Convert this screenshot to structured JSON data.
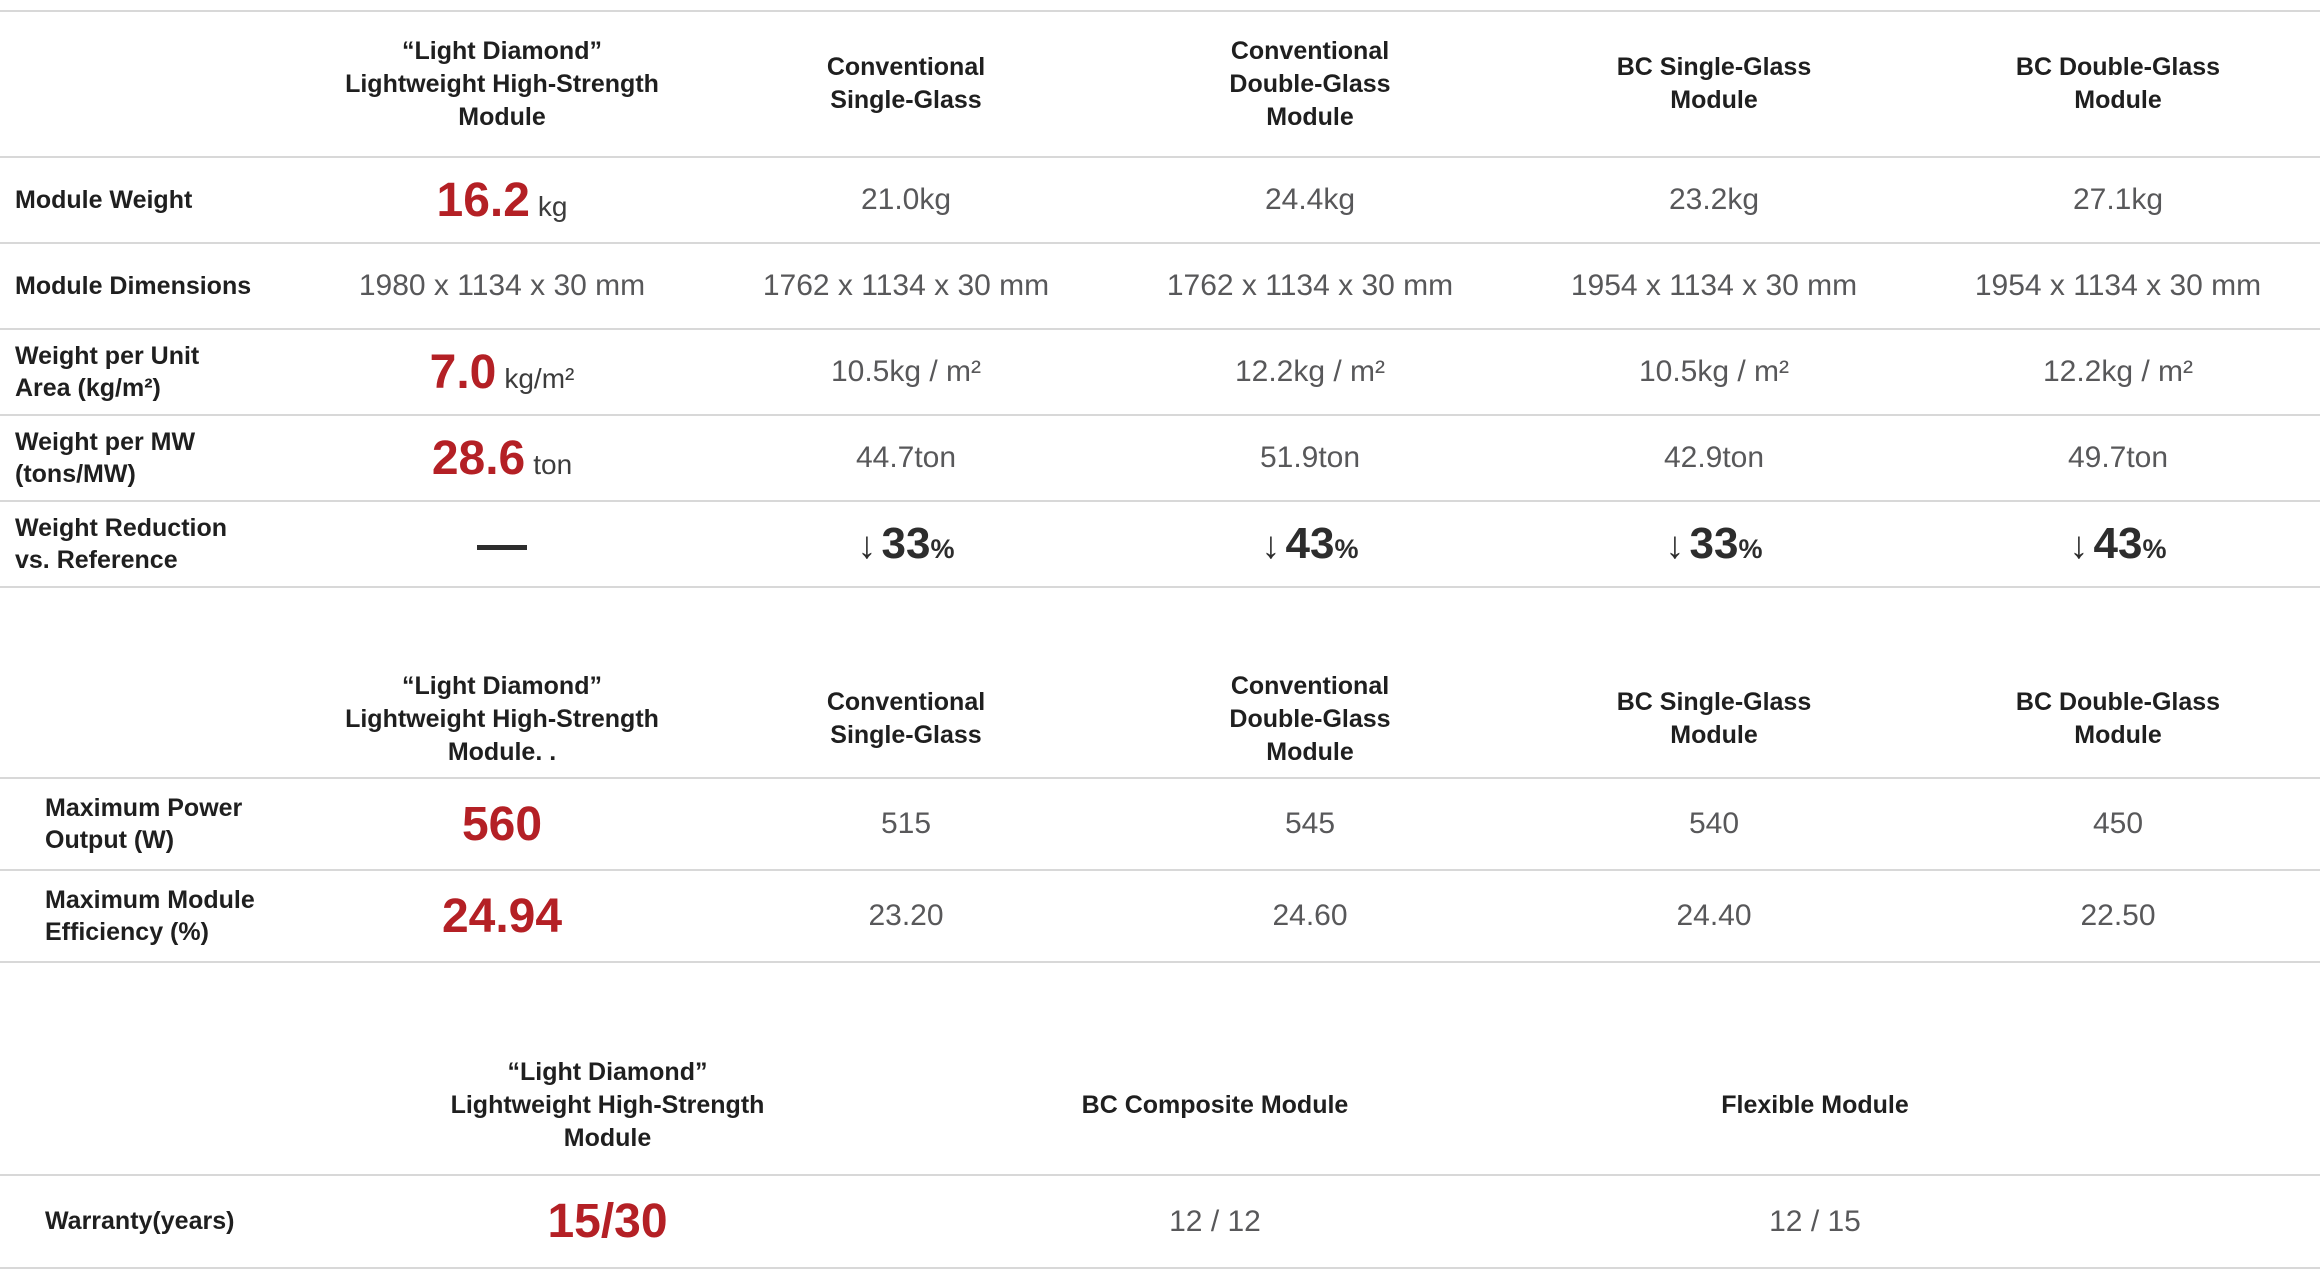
{
  "colors": {
    "accent": "#b42025",
    "label_text": "#1f1f1f",
    "value_text": "#58585a",
    "highlight_dark": "#2d2d2d",
    "divider": "#d8d8d8",
    "background": "#ffffff"
  },
  "chart_data": [
    {
      "type": "table",
      "title": "Module weight comparison",
      "columns": [
        {
          "lines": [
            "“Light Diamond”",
            "Lightweight High-Strength",
            "Module"
          ]
        },
        {
          "lines": [
            "Conventional",
            "Single-Glass"
          ]
        },
        {
          "lines": [
            "Conventional",
            "Double-Glass",
            "Module"
          ]
        },
        {
          "lines": [
            "BC Single-Glass",
            "Module"
          ]
        },
        {
          "lines": [
            "BC Double-Glass",
            "Module"
          ]
        }
      ],
      "rows": [
        {
          "label_lines": [
            "Module Weight"
          ],
          "cells": [
            {
              "num": "16.2",
              "unit": "kg"
            },
            {
              "text": "21.0kg"
            },
            {
              "text": "24.4kg"
            },
            {
              "text": "23.2kg"
            },
            {
              "text": "27.1kg"
            }
          ]
        },
        {
          "label_lines": [
            "Module Dimensions"
          ],
          "cells": [
            {
              "text": "1980 x 1134 x 30 mm"
            },
            {
              "text": "1762 x 1134 x 30 mm"
            },
            {
              "text": "1762 x 1134 x 30 mm"
            },
            {
              "text": "1954 x 1134 x 30 mm"
            },
            {
              "text": "1954 x 1134 x 30 mm"
            }
          ]
        },
        {
          "label_lines": [
            "Weight per Unit",
            "Area (kg/m²)"
          ],
          "cells": [
            {
              "num": "7.0",
              "unit": "kg/m²"
            },
            {
              "text": "10.5kg / m²"
            },
            {
              "text": "12.2kg / m²"
            },
            {
              "text": "10.5kg / m²"
            },
            {
              "text": "12.2kg / m²"
            }
          ]
        },
        {
          "label_lines": [
            "Weight per MW",
            "(tons/MW)"
          ],
          "cells": [
            {
              "num": "28.6",
              "unit": "ton"
            },
            {
              "text": "44.7ton"
            },
            {
              "text": "51.9ton"
            },
            {
              "text": "42.9ton"
            },
            {
              "text": "49.7ton"
            }
          ]
        },
        {
          "label_lines": [
            "Weight Reduction",
            "vs. Reference"
          ],
          "cells": [
            {
              "dash": "—"
            },
            {
              "arrow": "↓",
              "num": "33",
              "pct": "%"
            },
            {
              "arrow": "↓",
              "num": "43",
              "pct": "%"
            },
            {
              "arrow": "↓",
              "num": "33",
              "pct": "%"
            },
            {
              "arrow": "↓",
              "num": "43",
              "pct": "%"
            }
          ]
        }
      ]
    },
    {
      "type": "table",
      "title": "Power and efficiency comparison",
      "columns": [
        {
          "lines": [
            "“Light Diamond”",
            "Lightweight High-Strength",
            "Module. ."
          ]
        },
        {
          "lines": [
            "Conventional",
            "Single-Glass"
          ]
        },
        {
          "lines": [
            "Conventional",
            "Double-Glass",
            "Module"
          ]
        },
        {
          "lines": [
            "BC Single-Glass",
            "Module"
          ]
        },
        {
          "lines": [
            "BC Double-Glass",
            "Module"
          ]
        }
      ],
      "rows": [
        {
          "label_lines": [
            "Maximum Power",
            "Output (W)"
          ],
          "cells": [
            {
              "num": "560"
            },
            {
              "text": "515"
            },
            {
              "text": "545"
            },
            {
              "text": "540"
            },
            {
              "text": "450"
            }
          ]
        },
        {
          "label_lines": [
            "Maximum Module",
            "Efficiency (%)"
          ],
          "cells": [
            {
              "num": "24.94"
            },
            {
              "text": "23.20"
            },
            {
              "text": "24.60"
            },
            {
              "text": "24.40"
            },
            {
              "text": "22.50"
            }
          ]
        }
      ]
    },
    {
      "type": "table",
      "title": "Warranty comparison",
      "columns": [
        {
          "lines": [
            "“Light Diamond”",
            "Lightweight High-Strength",
            "Module"
          ]
        },
        {
          "lines": [
            "BC Composite Module"
          ]
        },
        {
          "lines": [
            "Flexible Module"
          ]
        }
      ],
      "rows": [
        {
          "label_lines": [
            "Warranty(years)"
          ],
          "cells": [
            {
              "num": "15/30"
            },
            {
              "text": "12 / 12"
            },
            {
              "text": "12 / 15"
            }
          ]
        }
      ]
    }
  ]
}
